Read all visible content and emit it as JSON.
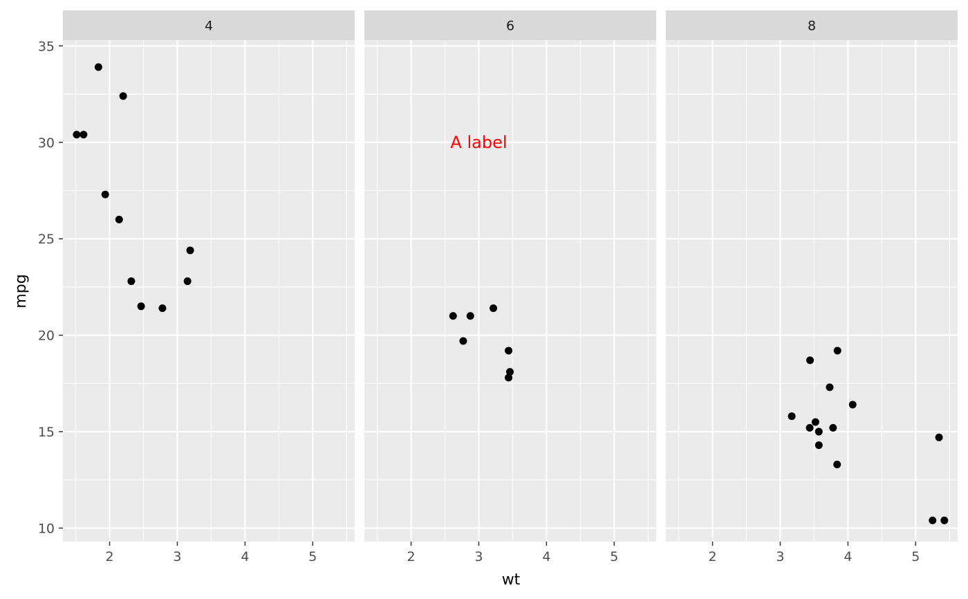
{
  "chart_data": {
    "type": "scatter",
    "xlabel": "wt",
    "ylabel": "mpg",
    "xlim": [
      1.31,
      5.62
    ],
    "ylim": [
      9.3,
      35.3
    ],
    "x_ticks": [
      2,
      3,
      4,
      5
    ],
    "y_ticks": [
      10,
      15,
      20,
      25,
      30,
      35
    ],
    "grid": true,
    "colors": {
      "panel_background": "#ebebeb",
      "strip_background": "#d9d9d9",
      "grid": "#ffffff",
      "point": "#000000",
      "annotation": "#ff0000",
      "tick_text": "#4d4d4d",
      "strip_text": "#1a1a1a"
    },
    "facets": [
      {
        "label": "4",
        "points": [
          {
            "x": 2.32,
            "y": 22.8
          },
          {
            "x": 3.19,
            "y": 24.4
          },
          {
            "x": 3.15,
            "y": 22.8
          },
          {
            "x": 2.2,
            "y": 32.4
          },
          {
            "x": 1.615,
            "y": 30.4
          },
          {
            "x": 1.835,
            "y": 33.9
          },
          {
            "x": 2.465,
            "y": 21.5
          },
          {
            "x": 1.935,
            "y": 27.3
          },
          {
            "x": 2.14,
            "y": 26.0
          },
          {
            "x": 1.513,
            "y": 30.4
          },
          {
            "x": 2.78,
            "y": 21.4
          }
        ]
      },
      {
        "label": "6",
        "points": [
          {
            "x": 2.62,
            "y": 21.0
          },
          {
            "x": 2.875,
            "y": 21.0
          },
          {
            "x": 3.215,
            "y": 21.4
          },
          {
            "x": 3.46,
            "y": 18.1
          },
          {
            "x": 3.44,
            "y": 19.2
          },
          {
            "x": 3.44,
            "y": 17.8
          },
          {
            "x": 2.77,
            "y": 19.7
          }
        ],
        "annotation": {
          "text": "A label",
          "x": 3.0,
          "y": 30.0
        }
      },
      {
        "label": "8",
        "points": [
          {
            "x": 3.44,
            "y": 18.7
          },
          {
            "x": 3.57,
            "y": 14.3
          },
          {
            "x": 4.07,
            "y": 16.4
          },
          {
            "x": 3.73,
            "y": 17.3
          },
          {
            "x": 3.78,
            "y": 15.2
          },
          {
            "x": 5.25,
            "y": 10.4
          },
          {
            "x": 5.424,
            "y": 10.4
          },
          {
            "x": 5.345,
            "y": 14.7
          },
          {
            "x": 3.52,
            "y": 15.5
          },
          {
            "x": 3.435,
            "y": 15.2
          },
          {
            "x": 3.84,
            "y": 13.3
          },
          {
            "x": 3.845,
            "y": 19.2
          },
          {
            "x": 3.17,
            "y": 15.8
          },
          {
            "x": 3.57,
            "y": 15.0
          }
        ]
      }
    ]
  }
}
